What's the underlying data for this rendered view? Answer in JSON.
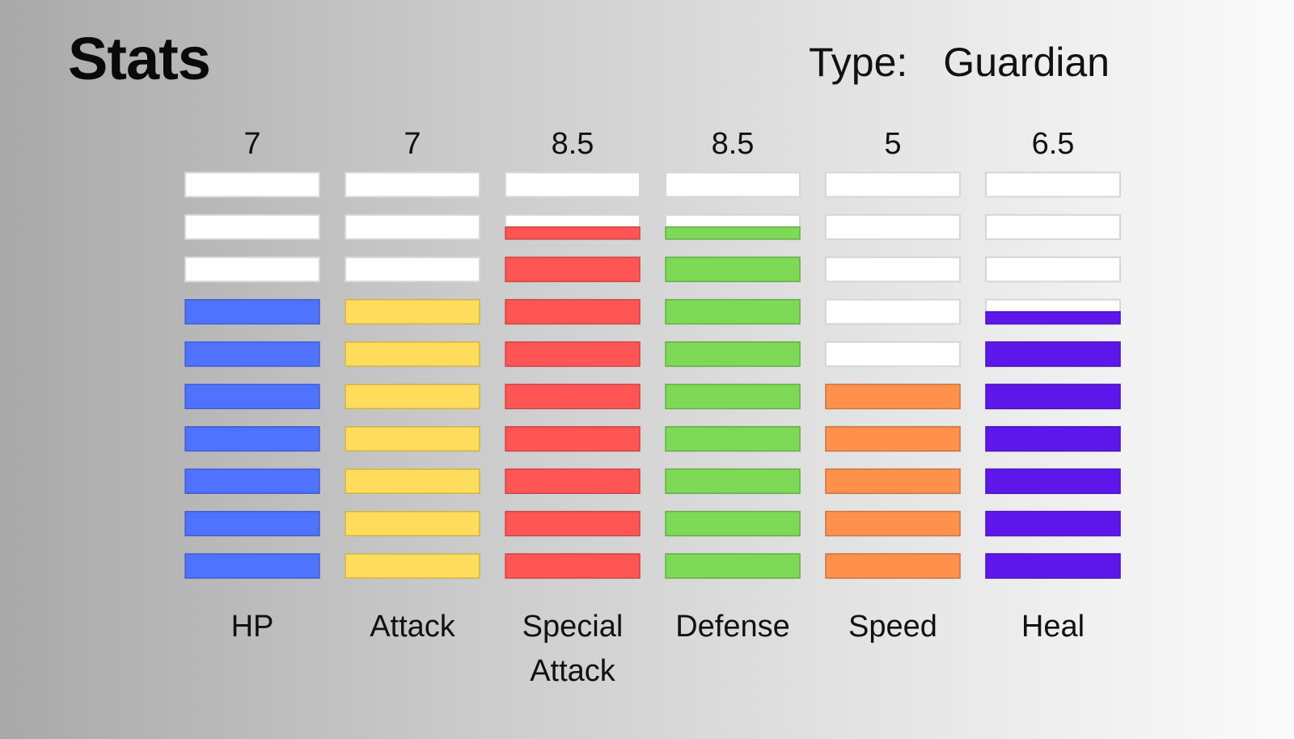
{
  "header": {
    "title": "Stats",
    "type_label": "Type:",
    "type_value": "Guardian"
  },
  "chart_data": {
    "type": "bar",
    "max_value": 10,
    "empty_segment_color": "#ffffff",
    "stats": [
      {
        "label": [
          "HP"
        ],
        "value": 7,
        "value_text": "7",
        "color": "#4f72ff"
      },
      {
        "label": [
          "Attack"
        ],
        "value": 7,
        "value_text": "7",
        "color": "#ffdc5c"
      },
      {
        "label": [
          "Special",
          "Attack"
        ],
        "value": 8.5,
        "value_text": "8.5",
        "color": "#ff5555"
      },
      {
        "label": [
          "Defense"
        ],
        "value": 8.5,
        "value_text": "8.5",
        "color": "#7ed957"
      },
      {
        "label": [
          "Speed"
        ],
        "value": 5,
        "value_text": "5",
        "color": "#ff914d"
      },
      {
        "label": [
          "Heal"
        ],
        "value": 6.5,
        "value_text": "6.5",
        "color": "#5e17eb"
      }
    ]
  }
}
